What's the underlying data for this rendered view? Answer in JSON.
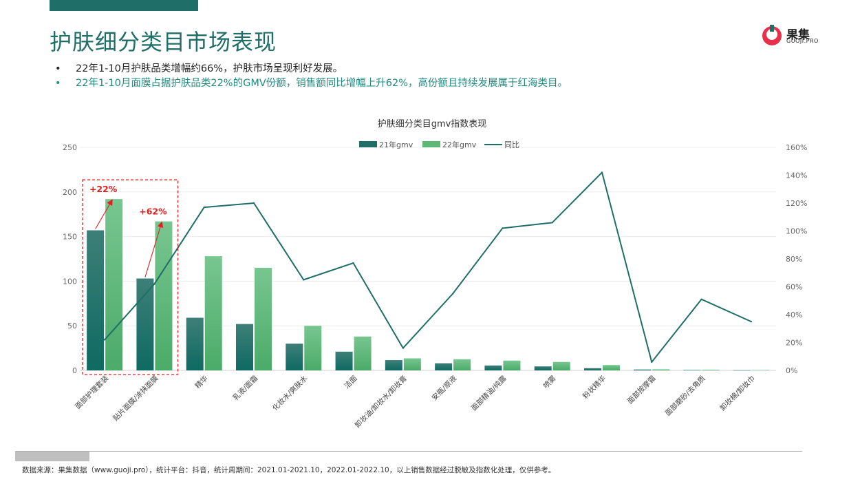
{
  "header": {
    "title": "护肤细分类目市场表现"
  },
  "logo": {
    "name": "果集",
    "sub": "GUOJI.PRO"
  },
  "bullets": [
    "22年1-10月护肤品类增幅约66%，护肤市场呈现利好发展。",
    "22年1-10月面膜占据护肤品类22%的GMV份额，销售额同比增幅上升62%，高份额且持续发展属于红海类目。"
  ],
  "bullet_symbol": "•",
  "footer": {
    "source": "数据来源：果集数据（www.guoji.pro），统计平台：抖音，统计周期间：2021.01-2021.10，2022.01-2022.10，以上销售数据经过脱敏及指数化处理，仅供参考。"
  },
  "colors": {
    "brand": "#1f6e68",
    "accent_red": "#e02020",
    "bar21": "#1f6e68",
    "bar22": "#5cb874",
    "line": "#1f6e68"
  },
  "chart_data": {
    "type": "bar",
    "title": "护肤细分类目gmv指数表现",
    "categories": [
      "面部护理套装",
      "贴片面膜/涂抹面膜",
      "精华",
      "乳液/面霜",
      "化妆水/爽肤水",
      "洁面",
      "卸妆油/卸妆水/卸妆膏",
      "安瓶/原液",
      "面部精油/纯露",
      "喷雾",
      "粉状精华",
      "面部按摩霜",
      "面部磨砂/去角质",
      "卸妆棉/卸妆巾"
    ],
    "series": [
      {
        "name": "21年gmv",
        "type": "bar",
        "axis": "left",
        "values": [
          157,
          103,
          59,
          52,
          30,
          21,
          11.5,
          8,
          5.5,
          4.5,
          2.5,
          1,
          0.5,
          0.2
        ]
      },
      {
        "name": "22年gmv",
        "type": "bar",
        "axis": "left",
        "values": [
          192,
          167,
          128,
          115,
          50,
          38,
          13.5,
          12.5,
          11,
          9.5,
          6,
          1.2,
          0.7,
          0.4
        ]
      },
      {
        "name": "同比",
        "type": "line",
        "axis": "right",
        "values": [
          22,
          62,
          117,
          120,
          65,
          77,
          16,
          55,
          102,
          106,
          142,
          6,
          51,
          35
        ]
      }
    ],
    "y_left": {
      "min": 0,
      "max": 250,
      "ticks": [
        "0",
        "50",
        "100",
        "150",
        "200",
        "250"
      ]
    },
    "y_right": {
      "min": 0,
      "max": 160,
      "ticks": [
        "0%",
        "20%",
        "40%",
        "60%",
        "80%",
        "100%",
        "120%",
        "140%",
        "160%"
      ]
    },
    "legend_position": "top-center",
    "grid": true,
    "annotations": [
      {
        "text": "+22%",
        "category_index": 0
      },
      {
        "text": "+62%",
        "category_index": 1
      }
    ]
  }
}
